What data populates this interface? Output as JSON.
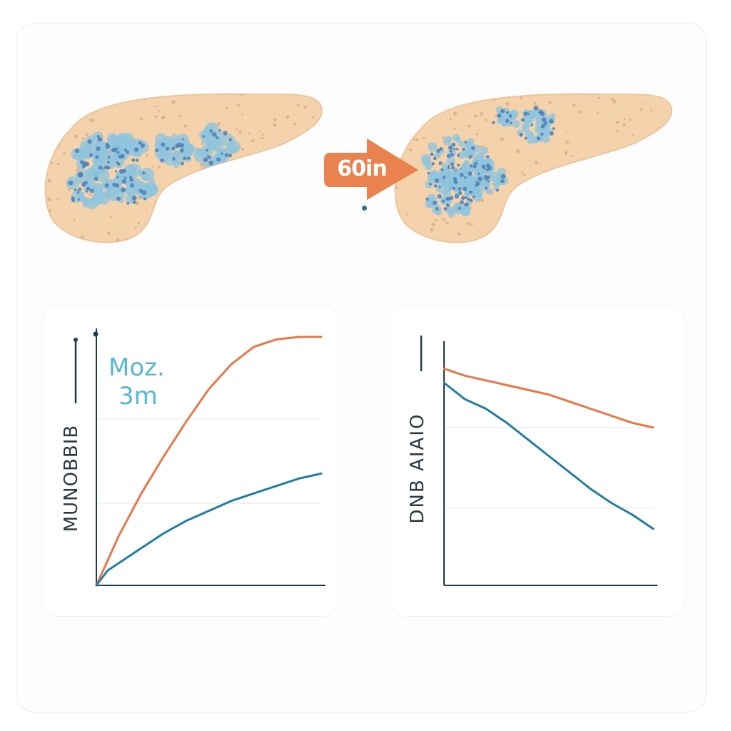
{
  "arrow": {
    "label": "60in",
    "color": "#e9824f"
  },
  "colors": {
    "organ_fill": "#f4d2ab",
    "organ_speckle": "#d9a77e",
    "cluster_light": "#8fc4dd",
    "cluster_dark": "#4d7fb8",
    "series_orange": "#e8774a",
    "series_teal": "#217ea0",
    "axis": "#1f3a4a"
  },
  "organs": {
    "left": "pancreas-before",
    "right": "pancreas-after"
  },
  "chart_data": [
    {
      "type": "line",
      "ylabel": "MUNOBBIB",
      "annotations": [
        "Moz.",
        "3m"
      ],
      "x": [
        0,
        0.05,
        0.1,
        0.2,
        0.3,
        0.4,
        0.5,
        0.6,
        0.7,
        0.8,
        0.9,
        1.0
      ],
      "series": [
        {
          "values": [
            0,
            0.1,
            0.2,
            0.37,
            0.52,
            0.66,
            0.79,
            0.89,
            0.96,
            0.99,
            1.0,
            1.0
          ]
        },
        {
          "values": [
            0,
            0.06,
            0.09,
            0.15,
            0.21,
            0.26,
            0.3,
            0.34,
            0.37,
            0.4,
            0.43,
            0.45
          ]
        }
      ],
      "grid": true
    },
    {
      "type": "line",
      "ylabel": "DNB AIAIO",
      "x": [
        0,
        0.1,
        0.2,
        0.3,
        0.4,
        0.5,
        0.6,
        0.7,
        0.8,
        0.9,
        1.0
      ],
      "series": [
        {
          "values": [
            0.92,
            0.89,
            0.87,
            0.85,
            0.83,
            0.81,
            0.78,
            0.75,
            0.72,
            0.69,
            0.67
          ]
        },
        {
          "values": [
            0.86,
            0.79,
            0.75,
            0.69,
            0.62,
            0.55,
            0.48,
            0.41,
            0.35,
            0.3,
            0.24
          ]
        }
      ],
      "grid": true
    }
  ]
}
